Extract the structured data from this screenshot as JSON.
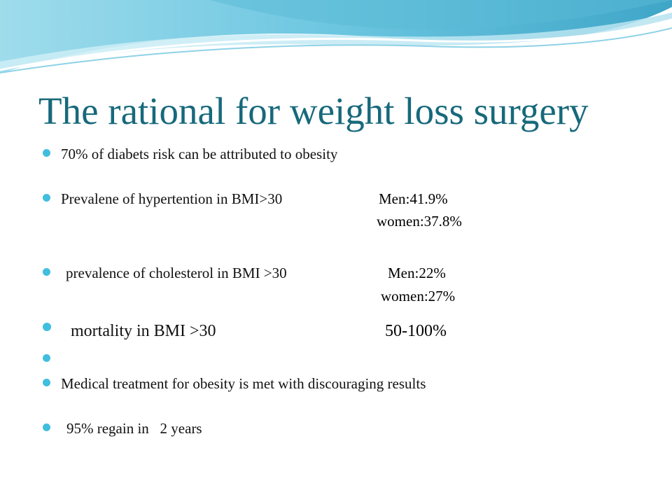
{
  "slide": {
    "title": "The rational for weight loss surgery",
    "accent_color": "#41bede",
    "title_color": "#17697b"
  },
  "bullets": [
    {
      "text": "70% of diabets risk can be attributed to obesity"
    },
    {
      "text": "Prevalene of hypertention in BMI>30",
      "men": "Men:41.9%",
      "women": "women:37.8%"
    },
    {
      "text": "prevalence of cholesterol in BMI >30",
      "men": "Men:22%",
      "women": "women:27%"
    },
    {
      "text": "mortality in BMI >30",
      "value": "50-100%"
    },
    {
      "text": ""
    },
    {
      "text": "Medical treatment for obesity is met with discouraging results"
    },
    {
      "text": "95% regain in   2 years"
    }
  ]
}
